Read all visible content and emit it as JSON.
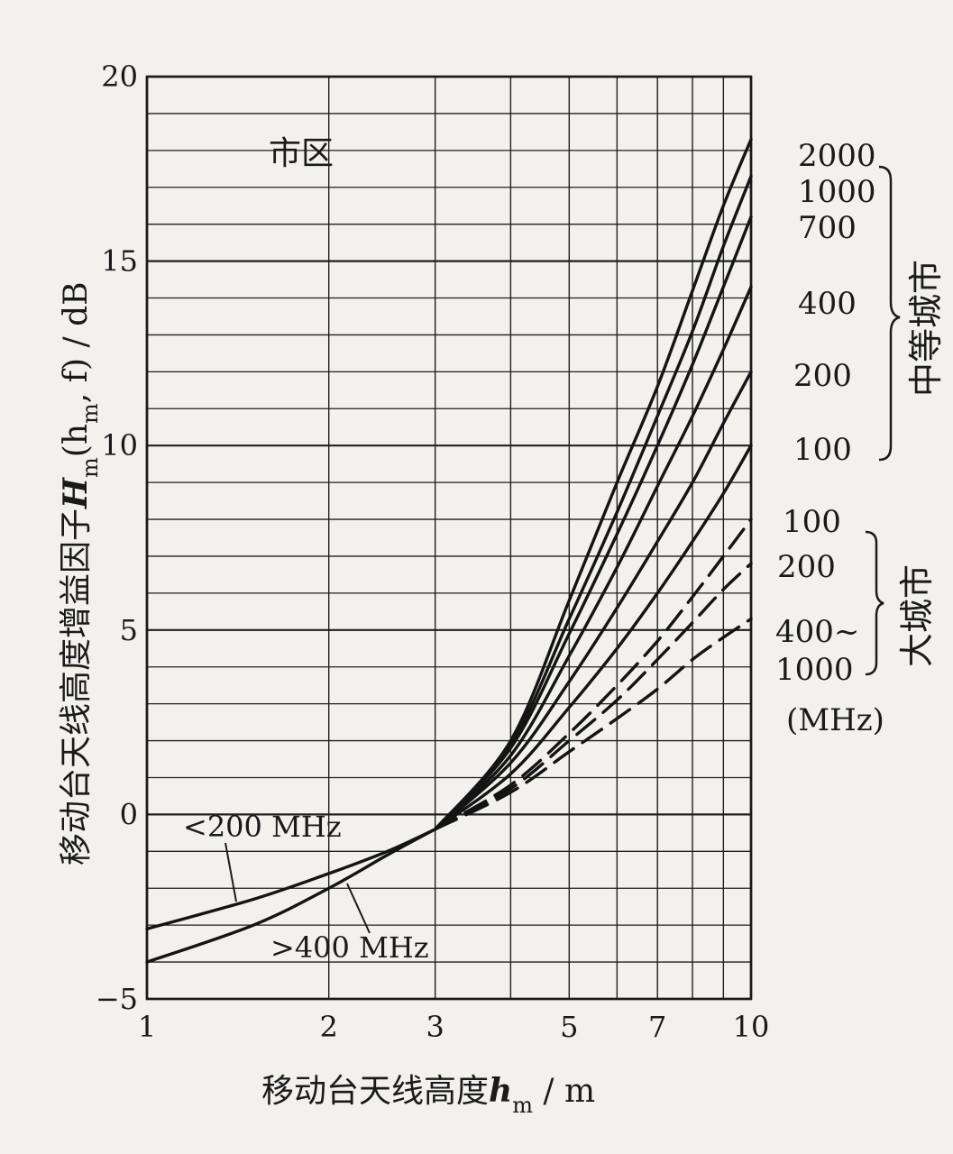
{
  "chart_data": {
    "type": "line",
    "xlabel": "移动台天线高度h_m / m",
    "xlabel_main": "移动台天线高度",
    "xlabel_var": "h",
    "xlabel_sub": "m",
    "xlabel_unit": " / m",
    "ylabel_main": "移动台天线高度增益因子",
    "ylabel_var": "H",
    "ylabel_sub": "m",
    "ylabel_args": "(h",
    "ylabel_args_sub": "m",
    "ylabel_tail": ", f) / dB",
    "x_scale": "log",
    "xlim": [
      1,
      10
    ],
    "ylim": [
      -5,
      20
    ],
    "x_ticks": [
      1,
      2,
      3,
      5,
      7,
      10
    ],
    "x_tick_labels": [
      "1",
      "2",
      "3",
      "5",
      "7",
      "10"
    ],
    "y_ticks": [
      -5,
      0,
      5,
      10,
      15,
      20
    ],
    "y_tick_labels": [
      "−5",
      "0",
      "5",
      "10",
      "15",
      "20"
    ],
    "grid": true,
    "region_label": "市区",
    "medium_city_label": "中等城市",
    "large_city_label": "大城市",
    "freq_unit_label": "(MHz)",
    "low_freq_label": "<200 MHz",
    "high_freq_label": ">400 MHz",
    "series": [
      {
        "name": "<200 MHz",
        "style": "solid",
        "x": [
          1,
          1.5,
          2,
          2.5,
          3
        ],
        "y": [
          -3.1,
          -2.3,
          -1.6,
          -1.0,
          -0.4
        ]
      },
      {
        "name": ">400 MHz",
        "style": "solid",
        "x": [
          1,
          1.5,
          2,
          2.5,
          3
        ],
        "y": [
          -4.0,
          -3.0,
          -2.0,
          -1.1,
          -0.4
        ]
      },
      {
        "name": "2000",
        "group": "中等城市",
        "style": "solid",
        "x": [
          3,
          4,
          5,
          6,
          7,
          8,
          9,
          10
        ],
        "y": [
          -0.4,
          2.0,
          5.8,
          9.0,
          11.6,
          14.2,
          16.5,
          18.3
        ]
      },
      {
        "name": "1000",
        "group": "中等城市",
        "style": "solid",
        "x": [
          3,
          4,
          5,
          6,
          7,
          8,
          9,
          10
        ],
        "y": [
          -0.4,
          1.9,
          5.3,
          8.2,
          10.8,
          13.1,
          15.4,
          17.3
        ]
      },
      {
        "name": "700",
        "group": "中等城市",
        "style": "solid",
        "x": [
          3,
          4,
          5,
          6,
          7,
          8,
          9,
          10
        ],
        "y": [
          -0.4,
          1.8,
          4.9,
          7.6,
          10.0,
          12.2,
          14.3,
          16.2
        ]
      },
      {
        "name": "400",
        "group": "中等城市",
        "style": "solid",
        "x": [
          3,
          4,
          5,
          6,
          7,
          8,
          9,
          10
        ],
        "y": [
          -0.4,
          1.6,
          4.3,
          6.7,
          8.9,
          10.8,
          12.6,
          14.3
        ]
      },
      {
        "name": "200",
        "group": "中等城市",
        "style": "solid",
        "x": [
          3,
          4,
          5,
          6,
          7,
          8,
          9,
          10
        ],
        "y": [
          -0.4,
          1.4,
          3.6,
          5.6,
          7.4,
          9.0,
          10.6,
          12.0
        ]
      },
      {
        "name": "100",
        "group": "中等城市",
        "style": "solid",
        "x": [
          3,
          4,
          5,
          6,
          7,
          8,
          9,
          10
        ],
        "y": [
          -0.4,
          1.1,
          2.9,
          4.5,
          6.0,
          7.4,
          8.7,
          10.0
        ]
      },
      {
        "name": "100",
        "group": "大城市",
        "style": "dashed",
        "x": [
          3,
          4,
          5,
          6,
          7,
          8,
          9,
          10
        ],
        "y": [
          -0.4,
          0.8,
          2.2,
          3.5,
          4.7,
          5.9,
          7.0,
          8.0
        ]
      },
      {
        "name": "200",
        "group": "大城市",
        "style": "dashed",
        "x": [
          3,
          4,
          5,
          6,
          7,
          8,
          9,
          10
        ],
        "y": [
          -0.4,
          0.7,
          2.0,
          3.1,
          4.2,
          5.2,
          6.1,
          6.8
        ]
      },
      {
        "name": "400~ 1000",
        "group": "大城市",
        "style": "dashed",
        "x": [
          3,
          4,
          5,
          6,
          7,
          8,
          9,
          10
        ],
        "y": [
          -0.4,
          0.6,
          1.7,
          2.6,
          3.4,
          4.2,
          4.8,
          5.3
        ]
      }
    ],
    "right_labels_medium": [
      "2000",
      "1000",
      "700",
      "400",
      "200",
      "100"
    ],
    "right_labels_large": [
      "100",
      "200",
      "400~",
      "1000"
    ]
  }
}
